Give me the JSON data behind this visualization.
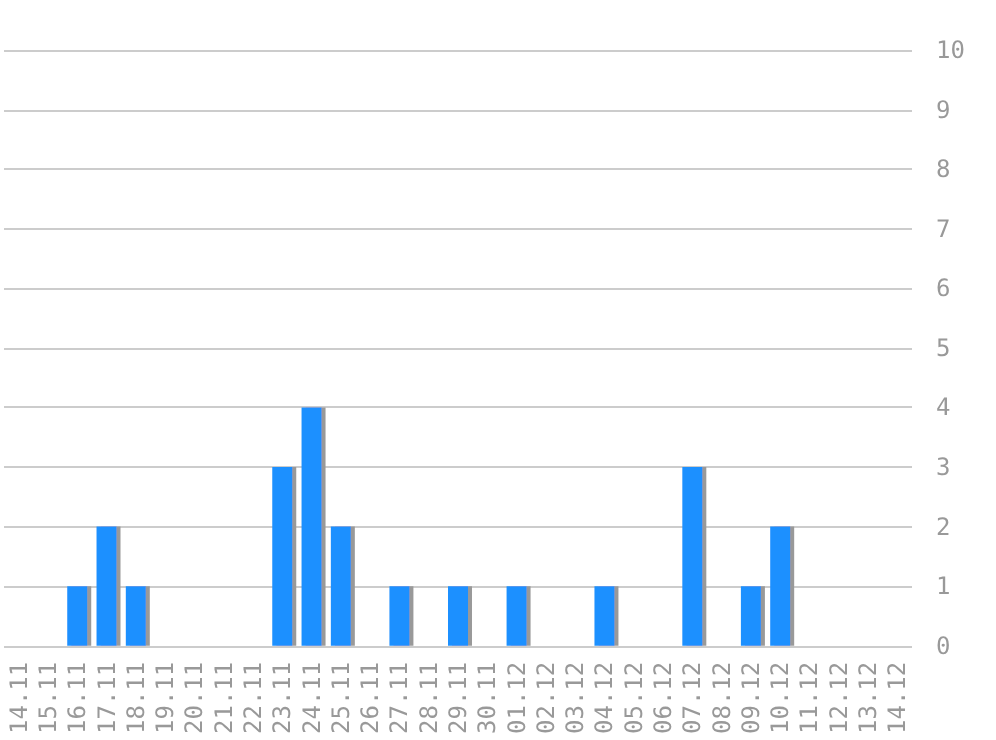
{
  "chart_data": {
    "type": "bar",
    "categories": [
      "14.11",
      "15.11",
      "16.11",
      "17.11",
      "18.11",
      "19.11",
      "20.11",
      "21.11",
      "22.11",
      "23.11",
      "24.11",
      "25.11",
      "26.11",
      "27.11",
      "28.11",
      "29.11",
      "30.11",
      "01.12",
      "02.12",
      "03.12",
      "04.12",
      "05.12",
      "06.12",
      "07.12",
      "08.12",
      "09.12",
      "10.12",
      "11.12",
      "12.12",
      "13.12",
      "14.12"
    ],
    "values": [
      0,
      0,
      1,
      2,
      1,
      0,
      0,
      0,
      0,
      3,
      4,
      2,
      0,
      1,
      0,
      1,
      0,
      1,
      0,
      0,
      1,
      0,
      0,
      3,
      0,
      1,
      2,
      0,
      0,
      0,
      0
    ],
    "color": "#1e90ff",
    "ylim": [
      0,
      10
    ],
    "yticks": [
      0,
      1,
      2,
      3,
      4,
      5,
      6,
      7,
      8,
      9,
      10
    ],
    "grid": "y"
  }
}
